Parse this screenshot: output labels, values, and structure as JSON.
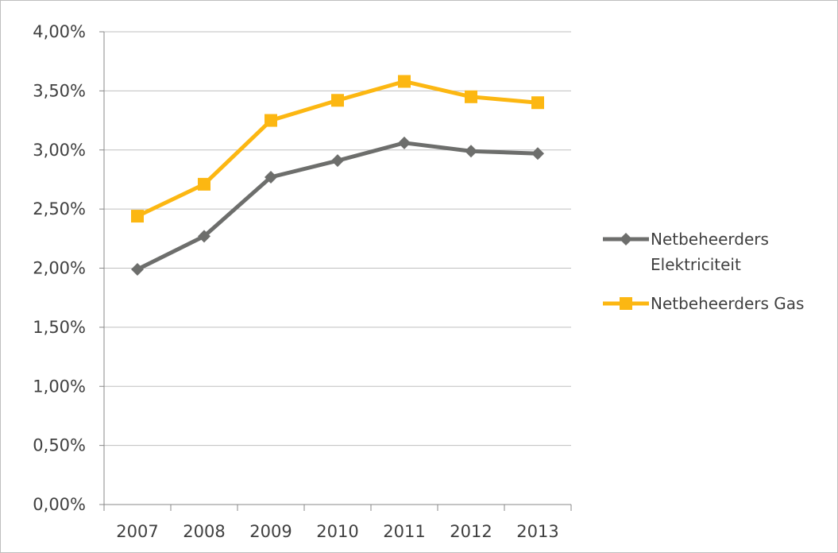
{
  "chart_data": {
    "type": "line",
    "title": "",
    "xlabel": "",
    "ylabel": "",
    "categories": [
      "2007",
      "2008",
      "2009",
      "2010",
      "2011",
      "2012",
      "2013"
    ],
    "ylim": [
      0,
      0.04
    ],
    "ytick_values": [
      0,
      0.005,
      0.01,
      0.015,
      0.02,
      0.025,
      0.03,
      0.035,
      0.04
    ],
    "ytick_labels": [
      "0,00%",
      "0,50%",
      "1,00%",
      "1,50%",
      "2,00%",
      "2,50%",
      "3,00%",
      "3,50%",
      "4,00%"
    ],
    "grid": true,
    "legend_position": "right",
    "series": [
      {
        "name": "Netbeheerders Elektriciteit",
        "legend_lines": [
          "Netbeheerders",
          "Elektriciteit"
        ],
        "color": "#6d6e6c",
        "marker": "diamond",
        "values": [
          0.0199,
          0.0227,
          0.0277,
          0.0291,
          0.0306,
          0.0299,
          0.0297
        ]
      },
      {
        "name": "Netbeheerders Gas",
        "legend_lines": [
          "Netbeheerders Gas"
        ],
        "color": "#fcb712",
        "marker": "square",
        "values": [
          0.0244,
          0.0271,
          0.0325,
          0.0342,
          0.0358,
          0.0345,
          0.034
        ]
      }
    ],
    "colors": {
      "gridline": "#bfbfbf",
      "axis": "#898989",
      "text": "#404040",
      "border": "#bfbfbf"
    }
  }
}
